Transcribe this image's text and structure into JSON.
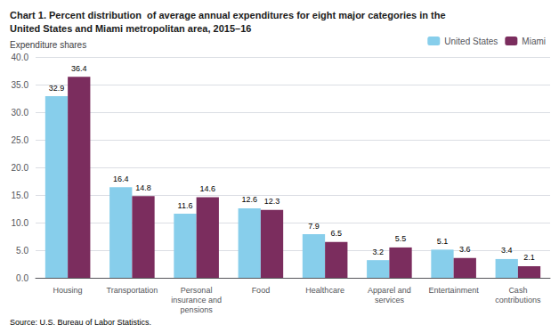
{
  "chart_data": {
    "type": "bar",
    "title": "Chart 1. Percent distribution  of average annual expenditures for eight major categories in the\nUnited States and Miami metropolitan area, 2015–16",
    "ylabel": "Expenditure shares",
    "annotations": [
      "Source: U.S. Bureau of Labor Statistics."
    ],
    "categories": [
      "Housing",
      "Transportation",
      "Personal\ninsurance and\npensions",
      "Food",
      "Healthcare",
      "Apparel and\nservices",
      "Entertainment",
      "Cash\ncontributions"
    ],
    "series": [
      {
        "name": "United States",
        "color": "#87CEEB",
        "values": [
          32.9,
          16.4,
          11.6,
          12.6,
          7.9,
          3.2,
          5.1,
          3.4
        ]
      },
      {
        "name": "Miami",
        "color": "#7B2D5E",
        "values": [
          36.4,
          14.8,
          14.6,
          12.3,
          6.5,
          5.5,
          3.6,
          2.1
        ]
      }
    ],
    "ylim": [
      0,
      40.0
    ],
    "yticks": [
      {
        "value": 0,
        "label": "0.0"
      },
      {
        "value": 5,
        "label": "5.0"
      },
      {
        "value": 10,
        "label": "10.0"
      },
      {
        "value": 15,
        "label": "15.0"
      },
      {
        "value": 20,
        "label": "20.0"
      },
      {
        "value": 25,
        "label": "25.0"
      },
      {
        "value": 30,
        "label": "30.0"
      },
      {
        "value": 35,
        "label": "35.0"
      },
      {
        "value": 40,
        "label": "40.0"
      }
    ],
    "grid": true,
    "legend": "upper right",
    "data_labels": true
  }
}
